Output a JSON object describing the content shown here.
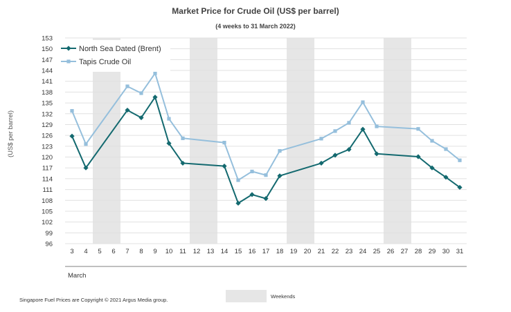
{
  "chart_data": {
    "type": "line",
    "title": "Market Price for Crude Oil (US$ per barrel)",
    "subtitle": "(4 weeks to 31 March 2022)",
    "ylabel": "(US$ per barrel)",
    "month_label": "March",
    "ylim": [
      96,
      153
    ],
    "y_ticks": [
      96,
      99,
      102,
      105,
      108,
      111,
      114,
      117,
      120,
      123,
      126,
      129,
      132,
      135,
      138,
      141,
      144,
      147,
      150,
      153
    ],
    "categories": [
      "3",
      "4",
      "5",
      "6",
      "7",
      "8",
      "9",
      "10",
      "11",
      "12",
      "13",
      "14",
      "15",
      "16",
      "17",
      "18",
      "19",
      "20",
      "21",
      "22",
      "23",
      "24",
      "25",
      "26",
      "27",
      "28",
      "29",
      "30",
      "31"
    ],
    "weekend_days": [
      [
        "5",
        "6"
      ],
      [
        "12",
        "13"
      ],
      [
        "19",
        "20"
      ],
      [
        "26",
        "27"
      ]
    ],
    "grid": true,
    "legend_position": "top-left",
    "series": [
      {
        "name": "North Sea Dated (Brent)",
        "color": "#13696f",
        "marker": "diamond",
        "points": [
          [
            "3",
            125.8
          ],
          [
            "4",
            117.0
          ],
          [
            "7",
            133.0
          ],
          [
            "8",
            130.9
          ],
          [
            "9",
            136.6
          ],
          [
            "10",
            123.8
          ],
          [
            "11",
            118.3
          ],
          [
            "14",
            117.5
          ],
          [
            "15",
            107.2
          ],
          [
            "16",
            109.6
          ],
          [
            "17",
            108.5
          ],
          [
            "18",
            114.8
          ],
          [
            "21",
            118.3
          ],
          [
            "22",
            120.5
          ],
          [
            "23",
            122.1
          ],
          [
            "24",
            127.7
          ],
          [
            "25",
            120.9
          ],
          [
            "28",
            120.1
          ],
          [
            "29",
            117.0
          ],
          [
            "30",
            114.4
          ],
          [
            "31",
            111.6
          ]
        ]
      },
      {
        "name": "Tapis Crude Oil",
        "color": "#95bfdc",
        "marker": "square",
        "points": [
          [
            "3",
            132.8
          ],
          [
            "4",
            123.6
          ],
          [
            "7",
            139.6
          ],
          [
            "8",
            137.7
          ],
          [
            "9",
            143.2
          ],
          [
            "10",
            130.6
          ],
          [
            "11",
            125.2
          ],
          [
            "14",
            124.0
          ],
          [
            "15",
            113.6
          ],
          [
            "16",
            116.0
          ],
          [
            "17",
            115.0
          ],
          [
            "18",
            121.7
          ],
          [
            "21",
            125.1
          ],
          [
            "22",
            127.2
          ],
          [
            "23",
            129.5
          ],
          [
            "24",
            135.2
          ],
          [
            "25",
            128.5
          ],
          [
            "28",
            127.8
          ],
          [
            "29",
            124.5
          ],
          [
            "30",
            122.2
          ],
          [
            "31",
            119.1
          ]
        ]
      }
    ],
    "weekends_label": "Weekends"
  },
  "footer": {
    "copyright": "Singapore Fuel Prices are Copyright © 2021 Argus Media group."
  }
}
